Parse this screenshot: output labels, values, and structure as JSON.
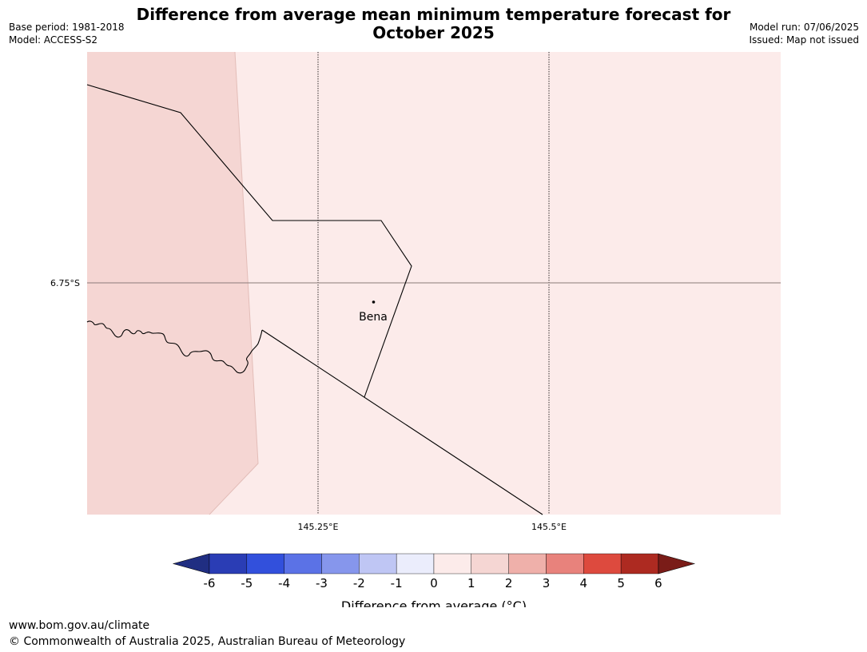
{
  "header": {
    "title_line1": "Difference from average mean minimum temperature forecast for",
    "title_line2": "October 2025",
    "base_period": "Base period: 1981-2018",
    "model": "Model: ACCESS-S2",
    "model_run": "Model run: 07/06/2025",
    "issued": "Issued: Map not issued"
  },
  "map": {
    "latitude_label": "6.75°S",
    "longitude_labels": [
      "145.25°E",
      "145.5°E"
    ],
    "place_label": "Bena",
    "colors": {
      "anomaly_1_to_2": "#f5d6d3",
      "anomaly_0_to_1": "#fcebea"
    }
  },
  "colorbar": {
    "label": "Difference from average (°C)",
    "ticks": [
      "-6",
      "-5",
      "-4",
      "-3",
      "-2",
      "-1",
      "0",
      "1",
      "2",
      "3",
      "4",
      "5",
      "6"
    ],
    "colors": [
      "#202e82",
      "#2a3db5",
      "#3250dc",
      "#5b72e6",
      "#8696ec",
      "#bfc6f4",
      "#ebedfc",
      "#fcebea",
      "#f5d6d3",
      "#efb0aa",
      "#e8827c",
      "#dd4a3e",
      "#ad2a21",
      "#7a1c18"
    ]
  },
  "footer": {
    "url": "www.bom.gov.au/climate",
    "copyright": "© Commonwealth of Australia 2025, Australian Bureau of Meteorology"
  }
}
